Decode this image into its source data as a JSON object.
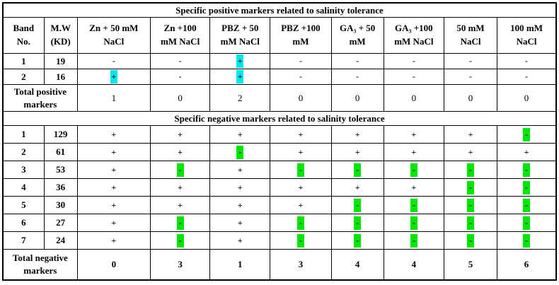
{
  "colors": {
    "positive_highlight": "#00e5ee",
    "negative_highlight": "#00e600",
    "border": "#000000",
    "text": "#000000"
  },
  "header": {
    "band_label": [
      "Band",
      "No."
    ],
    "mw_label": [
      "M.W",
      "(KD)"
    ],
    "treatments": [
      [
        "Zn + 50 mM",
        "NaCl"
      ],
      [
        "Zn +100",
        "mM NaCl"
      ],
      [
        "PBZ + 50",
        "mM NaCl"
      ],
      [
        "PBZ +100",
        "mM"
      ],
      [
        "GA₃ + 50",
        "mM"
      ],
      [
        "GA₃ +100",
        "mM NaCl"
      ],
      [
        "50 mM",
        "NaCl"
      ],
      [
        "100 mM",
        "NaCl"
      ]
    ]
  },
  "positive": {
    "title": "Specific positive markers related to salinity tolerance",
    "rows": [
      {
        "band": "1",
        "mw": "19",
        "values": [
          "-",
          "-",
          "+",
          "-",
          "-",
          "-",
          "-",
          "-"
        ],
        "hl": [
          0,
          0,
          1,
          0,
          0,
          0,
          0,
          0
        ]
      },
      {
        "band": "2",
        "mw": "16",
        "values": [
          "+",
          "-",
          "+",
          "-",
          "-",
          "-",
          "-",
          "-"
        ],
        "hl": [
          1,
          0,
          1,
          0,
          0,
          0,
          0,
          0
        ]
      }
    ],
    "total_label": [
      "Total positive",
      "markers"
    ],
    "totals": [
      "1",
      "0",
      "2",
      "0",
      "0",
      "0",
      "0",
      "0"
    ]
  },
  "negative": {
    "title": "Specific negative markers related to salinity tolerance",
    "rows": [
      {
        "band": "1",
        "mw": "129",
        "values": [
          "+",
          "+",
          "+",
          "+",
          "+",
          "+",
          "+",
          "-"
        ],
        "hl": [
          0,
          0,
          0,
          0,
          0,
          0,
          0,
          1
        ]
      },
      {
        "band": "2",
        "mw": "61",
        "values": [
          "+",
          "+",
          "-",
          "+",
          "+",
          "+",
          "+",
          "+"
        ],
        "hl": [
          0,
          0,
          1,
          0,
          0,
          0,
          0,
          0
        ]
      },
      {
        "band": "3",
        "mw": "53",
        "values": [
          "+",
          "-",
          "+",
          "-",
          "-",
          "-",
          "-",
          "-"
        ],
        "hl": [
          0,
          1,
          0,
          1,
          1,
          1,
          1,
          1
        ]
      },
      {
        "band": "4",
        "mw": "36",
        "values": [
          "+",
          "+",
          "+",
          "+",
          "+",
          "+",
          "-",
          "-"
        ],
        "hl": [
          0,
          0,
          0,
          0,
          0,
          0,
          1,
          1
        ]
      },
      {
        "band": "5",
        "mw": "30",
        "values": [
          "+",
          "+",
          "+",
          "+",
          "-",
          "-",
          "-",
          "-"
        ],
        "hl": [
          0,
          0,
          0,
          0,
          1,
          1,
          1,
          1
        ]
      },
      {
        "band": "6",
        "mw": "27",
        "values": [
          "+",
          "-",
          "+",
          "-",
          "-",
          "-",
          "-",
          "-"
        ],
        "hl": [
          0,
          1,
          0,
          1,
          1,
          1,
          1,
          1
        ]
      },
      {
        "band": "7",
        "mw": "24",
        "values": [
          "+",
          "-",
          "+",
          "-",
          "-",
          "-",
          "-",
          "-"
        ],
        "hl": [
          0,
          1,
          0,
          1,
          1,
          1,
          1,
          1
        ]
      }
    ],
    "total_label": [
      "Total negative",
      "markers"
    ],
    "totals": [
      "0",
      "3",
      "1",
      "3",
      "4",
      "4",
      "5",
      "6"
    ]
  }
}
